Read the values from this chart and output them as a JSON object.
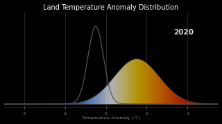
{
  "title": "Land Temperature Anomaly Distribution",
  "xlabel": "Temperature Anomaly (°C)",
  "background_color": "#000000",
  "title_color": "#ffffff",
  "label_color": "#888888",
  "year_label": "2020",
  "year_label_color": "#dddddd",
  "baseline_mu": -0.5,
  "baseline_sigma": 0.38,
  "shifted_mu": 1.5,
  "shifted_sigma": 1.1,
  "shifted_peak_scale": 0.58,
  "x_min": -5.0,
  "x_max": 5.5,
  "x_ticks": [
    -4,
    -2,
    0,
    2,
    4
  ],
  "vline_positions": [
    -4,
    -2,
    0,
    2,
    4
  ],
  "vline_color": "#333333",
  "baseline_line_color": "#555555",
  "gradient_stops": [
    [
      0.0,
      "#0022aa"
    ],
    [
      0.2,
      "#1155cc"
    ],
    [
      0.35,
      "#4488ee"
    ],
    [
      0.44,
      "#aaccff"
    ],
    [
      0.5,
      "#ffffff"
    ],
    [
      0.56,
      "#ffee88"
    ],
    [
      0.63,
      "#ffcc00"
    ],
    [
      0.72,
      "#ff8800"
    ],
    [
      0.82,
      "#ee3300"
    ],
    [
      1.0,
      "#aa0000"
    ]
  ]
}
